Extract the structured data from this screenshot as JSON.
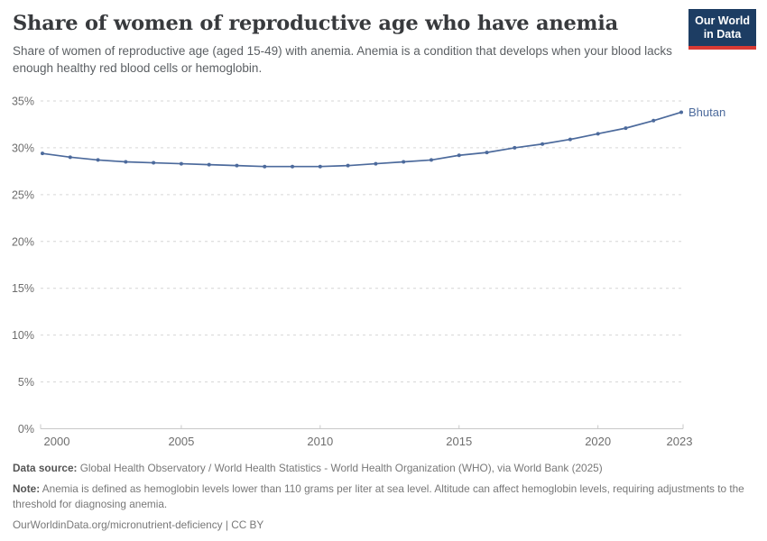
{
  "header": {
    "title": "Share of women of reproductive age who have anemia",
    "subtitle": "Share of women of reproductive age (aged 15-49) with anemia. Anemia is a condition that develops when your blood lacks enough healthy red blood cells or hemoglobin.",
    "logo": {
      "line1": "Our World",
      "line2": "in Data",
      "bg_color": "#1d3d63",
      "stripe_color": "#d93a34"
    }
  },
  "chart_data": {
    "type": "line",
    "title": "Share of women of reproductive age who have anemia",
    "xlabel": "",
    "ylabel": "",
    "x": [
      2000,
      2001,
      2002,
      2003,
      2004,
      2005,
      2006,
      2007,
      2008,
      2009,
      2010,
      2011,
      2012,
      2013,
      2014,
      2015,
      2016,
      2017,
      2018,
      2019,
      2020,
      2021,
      2022,
      2023
    ],
    "series": [
      {
        "name": "Bhutan",
        "color": "#4c6a9c",
        "values": [
          29.4,
          29.0,
          28.7,
          28.5,
          28.4,
          28.3,
          28.2,
          28.1,
          28.0,
          28.0,
          28.0,
          28.1,
          28.3,
          28.5,
          28.7,
          29.2,
          29.5,
          30.0,
          30.4,
          30.9,
          31.5,
          32.1,
          32.9,
          33.8
        ]
      }
    ],
    "ylim": [
      0,
      35
    ],
    "yticks": [
      {
        "value": 0,
        "label": "0%"
      },
      {
        "value": 5,
        "label": "5%"
      },
      {
        "value": 10,
        "label": "10%"
      },
      {
        "value": 15,
        "label": "15%"
      },
      {
        "value": 20,
        "label": "20%"
      },
      {
        "value": 25,
        "label": "25%"
      },
      {
        "value": 30,
        "label": "30%"
      },
      {
        "value": 35,
        "label": "35%"
      }
    ],
    "xticks": [
      2000,
      2005,
      2010,
      2015,
      2020,
      2023
    ],
    "grid": "horizontal-dashed",
    "legend_position": "end-of-line"
  },
  "footer": {
    "datasource_label": "Data source:",
    "datasource": "Global Health Observatory / World Health Statistics - World Health Organization (WHO), via World Bank (2025)",
    "note_label": "Note:",
    "note": "Anemia is defined as hemoglobin levels lower than 110 grams per liter at sea level. Altitude can affect hemoglobin levels, requiring adjustments to the threshold for diagnosing anemia.",
    "url": "OurWorldinData.org/micronutrient-deficiency",
    "separator": "|",
    "license": "CC BY"
  }
}
